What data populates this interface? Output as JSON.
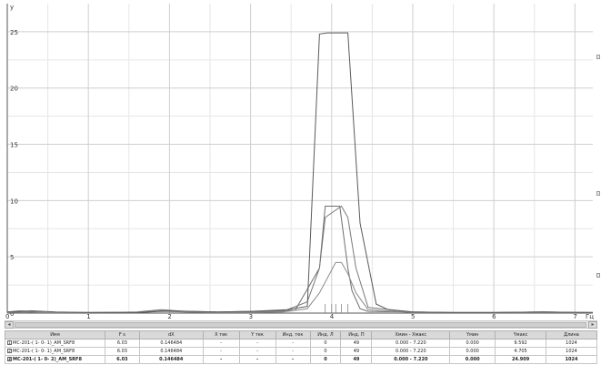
{
  "chart_data": {
    "type": "line",
    "title": "",
    "xlabel": "",
    "ylabel": "",
    "x_unit_label": "Гц",
    "y_top_label": "y",
    "xlim": [
      0,
      7.22
    ],
    "ylim": [
      0,
      27.5
    ],
    "x_ticks": [
      "0",
      "1",
      "2",
      "3",
      "4",
      "5",
      "6",
      "7"
    ],
    "y_ticks": [
      "0",
      "5",
      "10",
      "15",
      "20",
      "25"
    ],
    "grid": true,
    "series": [
      {
        "color": "#6e6e6e",
        "x": [
          0,
          0.15,
          0.3,
          0.45,
          1.0,
          1.6,
          1.9,
          2.2,
          2.6,
          3.0,
          3.3,
          3.55,
          3.85,
          3.92,
          4.05,
          4.1,
          4.2,
          4.25,
          4.35,
          4.45,
          5.0,
          5.5,
          6.0,
          6.6,
          7.22
        ],
        "values": [
          0.1,
          0.2,
          0.15,
          0.05,
          0.05,
          0.1,
          0.3,
          0.15,
          0.1,
          0.15,
          0.2,
          0.25,
          4.0,
          9.5,
          9.5,
          9.5,
          4.0,
          2.0,
          0.4,
          0.15,
          0.1,
          0.05,
          0.05,
          0.1,
          0.05
        ]
      },
      {
        "color": "#7a7a7a",
        "x": [
          0,
          0.2,
          0.4,
          1.0,
          1.6,
          1.9,
          2.2,
          2.6,
          3.0,
          3.4,
          3.7,
          3.85,
          3.92,
          4.12,
          4.2,
          4.3,
          4.45,
          5.0,
          5.5,
          6.0,
          6.6,
          7.22
        ],
        "values": [
          0.05,
          0.15,
          0.05,
          0.05,
          0.05,
          0.2,
          0.1,
          0.05,
          0.1,
          0.15,
          1.0,
          4.0,
          8.5,
          9.5,
          8.5,
          4.0,
          0.5,
          0.1,
          0.05,
          0.05,
          0.1,
          0.05
        ]
      },
      {
        "color": "#8c8c8c",
        "x": [
          0,
          0.2,
          0.4,
          1.0,
          1.6,
          1.9,
          2.2,
          2.6,
          3.0,
          3.4,
          3.7,
          3.85,
          4.05,
          4.12,
          4.2,
          4.3,
          4.45,
          5.0,
          5.5,
          6.0,
          6.6,
          7.22
        ],
        "values": [
          0.05,
          0.1,
          0.05,
          0.05,
          0.05,
          0.15,
          0.1,
          0.05,
          0.05,
          0.1,
          0.4,
          1.8,
          4.5,
          4.5,
          3.5,
          1.8,
          0.3,
          0.05,
          0.05,
          0.05,
          0.05,
          0.05
        ]
      },
      {
        "color": "#5a5a5a",
        "x": [
          0,
          0.3,
          0.6,
          1.0,
          1.6,
          2.0,
          2.6,
          3.0,
          3.45,
          3.7,
          3.85,
          3.95,
          4.1,
          4.2,
          4.35,
          4.55,
          4.7,
          5.0,
          5.5,
          6.0,
          6.6,
          7.22
        ],
        "values": [
          0.1,
          0.2,
          0.1,
          0.05,
          0.05,
          0.2,
          0.1,
          0.15,
          0.3,
          0.6,
          24.8,
          24.9,
          24.9,
          24.9,
          8.0,
          0.8,
          0.3,
          0.1,
          0.05,
          0.05,
          0.1,
          0.05
        ]
      }
    ]
  },
  "table": {
    "columns": [
      "Имя",
      "F s",
      "dX",
      "X тек",
      "Y тек",
      "Инд. тек",
      "Инд. Л",
      "Инд. П",
      "Xмин - Xмакс",
      "Yмин",
      "Yмакс",
      "Длина"
    ],
    "rows": [
      {
        "check": "1",
        "name": "MC-201-( 1- 0- 1)_AM_SRF8",
        "fs": "6.03",
        "dx": "0.146484",
        "xcur": "-",
        "ycur": "-",
        "icur": "-",
        "il": "0",
        "ip": "49",
        "xrange": "0.000 - 7.220",
        "ymin": "0.000",
        "ymax": "9.592",
        "len": "1024",
        "bold": false
      },
      {
        "check": "2",
        "name": "MC-201-( 1- 0- 1)_AM_SRF8",
        "fs": "6.03",
        "dx": "0.146484",
        "xcur": "-",
        "ycur": "-",
        "icur": "-",
        "il": "0",
        "ip": "49",
        "xrange": "0.000 - 7.220",
        "ymin": "0.000",
        "ymax": "4.705",
        "len": "1024",
        "bold": false
      },
      {
        "check": "3",
        "name": "MC-201-( 1- 0- 2)_AM_SRF8",
        "fs": "6.03",
        "dx": "0.146484",
        "xcur": "-",
        "ycur": "-",
        "icur": "-",
        "il": "0",
        "ip": "49",
        "xrange": "0.000 - 7.220",
        "ymin": "0.000",
        "ymax": "24.909",
        "len": "1024",
        "bold": true
      }
    ]
  },
  "scroll": {
    "left_arrow": "◂",
    "right_arrow": "▸"
  }
}
